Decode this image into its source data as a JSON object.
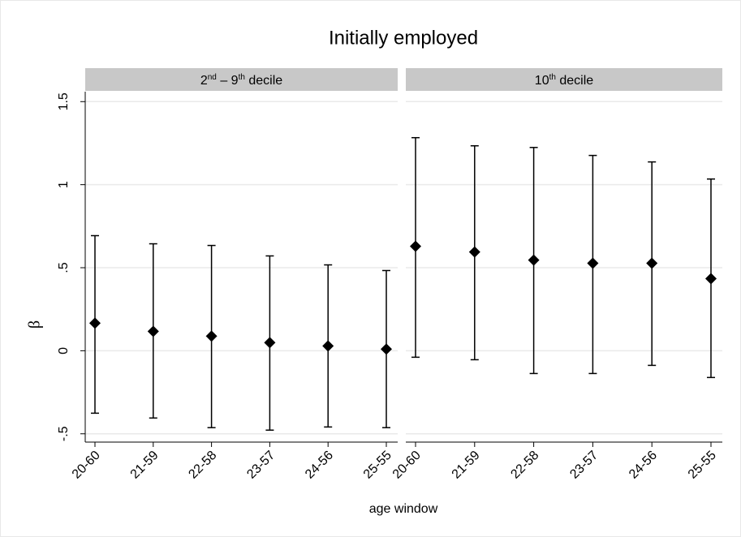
{
  "chart_data": {
    "type": "errorbar",
    "title": "Initially employed",
    "y_label": "β",
    "x_label": "age window",
    "color": "#000000",
    "grid": true,
    "ylim": [
      -0.55,
      1.56
    ],
    "yticks": [
      {
        "value": -0.5,
        "label": "-.5"
      },
      0,
      {
        "value": 0.5,
        "label": ".5"
      },
      1,
      1.5
    ],
    "panels": [
      {
        "title": [
          {
            "text": "2"
          },
          {
            "text": "nd",
            "sup": true
          },
          {
            "text": " – 9"
          },
          {
            "text": "th",
            "sup": true
          },
          {
            "text": " decile"
          }
        ],
        "categories": [
          "20-60",
          "21-59",
          "22-58",
          "23-57",
          "24-56",
          "25-55"
        ],
        "values": [
          0.166,
          0.117,
          0.088,
          0.049,
          0.029,
          0.01
        ],
        "lower": [
          -0.376,
          -0.405,
          -0.463,
          -0.478,
          -0.459,
          -0.463
        ],
        "upper": [
          0.693,
          0.644,
          0.634,
          0.571,
          0.517,
          0.483
        ]
      },
      {
        "title": [
          {
            "text": "10"
          },
          {
            "text": "th",
            "sup": true
          },
          {
            "text": " decile"
          }
        ],
        "categories": [
          "20-60",
          "21-59",
          "22-58",
          "23-57",
          "24-56",
          "25-55"
        ],
        "values": [
          0.629,
          0.595,
          0.546,
          0.527,
          0.527,
          0.434
        ],
        "lower": [
          -0.039,
          -0.054,
          -0.137,
          -0.137,
          -0.088,
          -0.161
        ],
        "upper": [
          1.283,
          1.234,
          1.224,
          1.176,
          1.137,
          1.034
        ]
      }
    ]
  }
}
